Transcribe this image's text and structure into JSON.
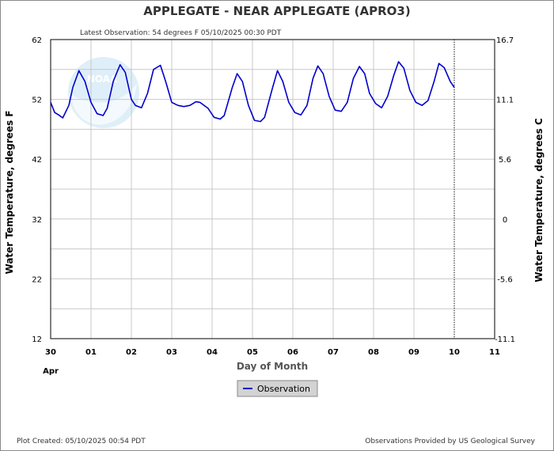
{
  "chart_data": {
    "type": "line",
    "title": "APPLEGATE - NEAR APPLEGATE  (APRO3)",
    "subtitle": "Latest Observation: 54 degrees F 05/10/2025 00:30 PDT",
    "ylabel": "Water Temperature, degrees F",
    "y2label": "Water Temperature, degrees C",
    "xlabel": "Day of Month",
    "xlabel_month": "Apr",
    "xlim": [
      0,
      11
    ],
    "ylim": [
      12,
      62
    ],
    "yticks": [
      12,
      22,
      32,
      42,
      52,
      62
    ],
    "y2ticks": [
      "-11.1",
      "-5.6",
      "0",
      "5.6",
      "11.1",
      "16.7"
    ],
    "xticks": [
      "30",
      "01",
      "02",
      "03",
      "04",
      "05",
      "06",
      "07",
      "08",
      "09",
      "10",
      "11"
    ],
    "grid": true,
    "current_time_marker_x": 10,
    "series": [
      {
        "name": "Observation",
        "color": "#0000cc",
        "x": [
          0.0,
          0.1,
          0.2,
          0.3,
          0.45,
          0.55,
          0.7,
          0.85,
          1.0,
          1.15,
          1.3,
          1.4,
          1.55,
          1.72,
          1.85,
          2.0,
          2.1,
          2.25,
          2.4,
          2.55,
          2.72,
          2.85,
          3.0,
          3.15,
          3.3,
          3.45,
          3.6,
          3.7,
          3.9,
          4.05,
          4.2,
          4.3,
          4.5,
          4.62,
          4.75,
          4.9,
          5.05,
          5.2,
          5.3,
          5.5,
          5.62,
          5.75,
          5.9,
          6.05,
          6.2,
          6.35,
          6.5,
          6.62,
          6.75,
          6.9,
          7.05,
          7.2,
          7.35,
          7.5,
          7.65,
          7.78,
          7.9,
          8.05,
          8.2,
          8.35,
          8.5,
          8.62,
          8.75,
          8.9,
          9.05,
          9.2,
          9.35,
          9.5,
          9.62,
          9.75,
          9.9,
          10.0
        ],
        "y": [
          51.5,
          49.8,
          49.4,
          48.9,
          51.0,
          54.0,
          56.8,
          55.0,
          51.5,
          49.6,
          49.3,
          50.5,
          55.0,
          57.8,
          56.5,
          52.0,
          51.0,
          50.6,
          53.0,
          57.0,
          57.7,
          55.0,
          51.5,
          51.0,
          50.8,
          51.0,
          51.6,
          51.5,
          50.5,
          49.0,
          48.7,
          49.3,
          54.0,
          56.3,
          55.0,
          51.0,
          48.5,
          48.3,
          49.0,
          54.0,
          56.8,
          55.0,
          51.5,
          49.8,
          49.4,
          51.0,
          55.5,
          57.6,
          56.3,
          52.5,
          50.2,
          50.0,
          51.5,
          55.5,
          57.5,
          56.3,
          53.0,
          51.3,
          50.6,
          52.5,
          56.0,
          58.3,
          57.2,
          53.5,
          51.5,
          51.0,
          51.8,
          55.0,
          58.0,
          57.3,
          55.0,
          54.0
        ]
      }
    ]
  },
  "legend": {
    "label": "Observation"
  },
  "footer": {
    "left": "Plot Created: 05/10/2025 00:54 PDT",
    "right": "Observations Provided by US Geological Survey"
  },
  "watermark": {
    "text": "NOAA"
  },
  "colors": {
    "line": "#0000cc",
    "grid": "#c8c8c8",
    "legend_bg": "#d3d3d3",
    "watermark": "#cfe6f7"
  }
}
